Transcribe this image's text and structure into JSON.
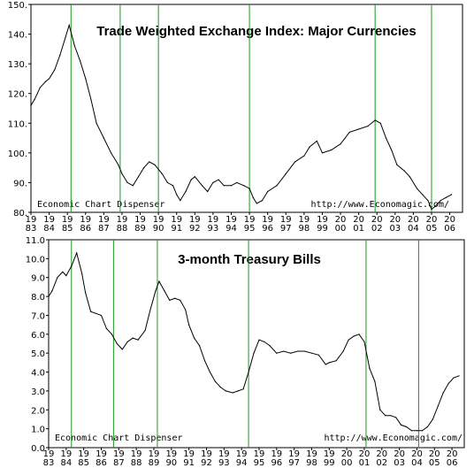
{
  "chart_data": [
    {
      "type": "line",
      "title": "Trade Weighted Exchange Index: Major Currencies",
      "footer_left": "Economic Chart Dispenser",
      "footer_right": "http://www.Economagic.com/",
      "ylim": [
        80,
        150
      ],
      "yticks": [
        "80.",
        "90.",
        "100.",
        "110.",
        "120.",
        "130.",
        "140.",
        "150."
      ],
      "xlim": [
        1983.0,
        2006.7
      ],
      "xtick_years": [
        1983,
        1984,
        1985,
        1986,
        1987,
        1988,
        1989,
        1990,
        1991,
        1992,
        1993,
        1994,
        1995,
        1996,
        1997,
        1998,
        1999,
        2000,
        2001,
        2002,
        2003,
        2004,
        2005,
        2006
      ],
      "xtick_labels": [
        [
          "19",
          "83"
        ],
        [
          "19",
          "84"
        ],
        [
          "19",
          "85"
        ],
        [
          "19",
          "86"
        ],
        [
          "19",
          "87"
        ],
        [
          "19",
          "88"
        ],
        [
          "19",
          "89"
        ],
        [
          "19",
          "90"
        ],
        [
          "19",
          "91"
        ],
        [
          "19",
          "92"
        ],
        [
          "19",
          "93"
        ],
        [
          "19",
          "94"
        ],
        [
          "19",
          "95"
        ],
        [
          "19",
          "96"
        ],
        [
          "19",
          "97"
        ],
        [
          "19",
          "98"
        ],
        [
          "19",
          "99"
        ],
        [
          "20",
          "00"
        ],
        [
          "20",
          "01"
        ],
        [
          "20",
          "02"
        ],
        [
          "20",
          "03"
        ],
        [
          "20",
          "04"
        ],
        [
          "20",
          "05"
        ],
        [
          "20",
          "06"
        ]
      ],
      "vlines": [
        1985.2,
        1987.9,
        1990.0,
        1995.0,
        2001.9,
        2005.0
      ],
      "series": [
        {
          "x": [
            1983.0,
            1983.2,
            1983.5,
            1983.8,
            1984.0,
            1984.3,
            1984.6,
            1984.9,
            1985.1,
            1985.4,
            1985.7,
            1986.0,
            1986.3,
            1986.6,
            1987.0,
            1987.4,
            1987.8,
            1988.0,
            1988.3,
            1988.6,
            1988.9,
            1989.2,
            1989.5,
            1989.8,
            1990.2,
            1990.5,
            1990.8,
            1991.0,
            1991.2,
            1991.5,
            1991.8,
            1992.0,
            1992.4,
            1992.7,
            1993.0,
            1993.3,
            1993.6,
            1994.0,
            1994.3,
            1994.7,
            1995.0,
            1995.2,
            1995.4,
            1995.7,
            1996.0,
            1996.5,
            1997.0,
            1997.5,
            1998.0,
            1998.3,
            1998.7,
            1999.0,
            1999.5,
            2000.0,
            2000.5,
            2001.0,
            2001.5,
            2001.9,
            2002.2,
            2002.5,
            2002.8,
            2003.1,
            2003.5,
            2003.8,
            2004.2,
            2004.5,
            2004.8,
            2005.0,
            2005.2,
            2005.5,
            2005.8,
            2006.1
          ],
          "y": [
            116,
            118,
            122,
            124,
            125,
            128,
            133,
            139,
            143,
            136,
            131,
            125,
            118,
            110,
            105,
            100,
            96,
            93,
            90,
            89,
            92,
            95,
            97,
            96,
            93,
            90,
            89,
            86,
            84,
            87,
            91,
            92,
            89,
            87,
            90,
            91,
            89,
            89,
            90,
            89,
            88,
            85,
            83,
            84,
            87,
            89,
            93,
            97,
            99,
            102,
            104,
            100,
            101,
            103,
            107,
            108,
            109,
            111,
            110,
            105,
            101,
            96,
            94,
            92,
            88,
            86,
            84,
            81,
            82,
            84,
            85,
            86
          ]
        }
      ]
    },
    {
      "type": "line",
      "title": "3-month Treasury Bills",
      "footer_left": "Economic Chart Dispenser",
      "footer_right": "http://www.Economagic.com/",
      "ylim": [
        0,
        11
      ],
      "yticks": [
        "0.0",
        "1.0",
        "2.0",
        "3.0",
        "4.0",
        "5.0",
        "6.0",
        "7.0",
        "8.0",
        "9.0",
        "10.0",
        "11.0"
      ],
      "xlim": [
        1983.0,
        2006.7
      ],
      "xtick_years": [
        1983,
        1984,
        1985,
        1986,
        1987,
        1988,
        1989,
        1990,
        1991,
        1992,
        1993,
        1994,
        1995,
        1996,
        1997,
        1998,
        1999,
        2000,
        2001,
        2002,
        2003,
        2004,
        2005,
        2006
      ],
      "xtick_labels": [
        [
          "19",
          "83"
        ],
        [
          "19",
          "84"
        ],
        [
          "19",
          "85"
        ],
        [
          "19",
          "86"
        ],
        [
          "19",
          "87"
        ],
        [
          "19",
          "88"
        ],
        [
          "19",
          "89"
        ],
        [
          "19",
          "90"
        ],
        [
          "19",
          "91"
        ],
        [
          "19",
          "92"
        ],
        [
          "19",
          "93"
        ],
        [
          "19",
          "94"
        ],
        [
          "19",
          "95"
        ],
        [
          "19",
          "96"
        ],
        [
          "19",
          "97"
        ],
        [
          "19",
          "98"
        ],
        [
          "19",
          "99"
        ],
        [
          "20",
          "00"
        ],
        [
          "20",
          "01"
        ],
        [
          "20",
          "02"
        ],
        [
          "20",
          "03"
        ],
        [
          "20",
          "04"
        ],
        [
          "20",
          "05"
        ],
        [
          "20",
          "06"
        ]
      ],
      "vlines": [
        1984.3,
        1986.7,
        1989.2,
        1994.4,
        2001.1,
        2004.1
      ],
      "series": [
        {
          "x": [
            1983.0,
            1983.2,
            1983.5,
            1983.8,
            1984.0,
            1984.3,
            1984.6,
            1984.9,
            1985.1,
            1985.4,
            1985.7,
            1986.0,
            1986.3,
            1986.6,
            1986.9,
            1987.2,
            1987.5,
            1987.8,
            1988.1,
            1988.5,
            1988.8,
            1989.1,
            1989.3,
            1989.6,
            1989.9,
            1990.2,
            1990.5,
            1990.8,
            1991.0,
            1991.3,
            1991.6,
            1991.9,
            1992.2,
            1992.5,
            1992.8,
            1993.1,
            1993.5,
            1993.8,
            1994.1,
            1994.4,
            1994.7,
            1995.0,
            1995.3,
            1995.6,
            1996.0,
            1996.4,
            1996.8,
            1997.2,
            1997.6,
            1998.0,
            1998.4,
            1998.8,
            1999.0,
            1999.4,
            1999.8,
            2000.1,
            2000.4,
            2000.7,
            2001.0,
            2001.3,
            2001.6,
            2001.9,
            2002.2,
            2002.5,
            2002.8,
            2003.1,
            2003.4,
            2003.7,
            2004.0,
            2004.3,
            2004.6,
            2004.9,
            2005.2,
            2005.5,
            2005.8,
            2006.1,
            2006.4
          ],
          "y": [
            8.0,
            8.3,
            9.0,
            9.3,
            9.1,
            9.6,
            10.3,
            9.2,
            8.2,
            7.2,
            7.1,
            7.0,
            6.3,
            6.0,
            5.5,
            5.2,
            5.6,
            5.8,
            5.7,
            6.2,
            7.3,
            8.3,
            8.8,
            8.3,
            7.8,
            7.9,
            7.8,
            7.3,
            6.5,
            5.8,
            5.4,
            4.6,
            4.0,
            3.5,
            3.2,
            3.0,
            2.9,
            3.0,
            3.1,
            4.0,
            5.0,
            5.7,
            5.6,
            5.4,
            5.0,
            5.1,
            5.0,
            5.1,
            5.1,
            5.0,
            4.9,
            4.4,
            4.5,
            4.6,
            5.1,
            5.7,
            5.9,
            6.0,
            5.6,
            4.2,
            3.5,
            2.0,
            1.7,
            1.7,
            1.6,
            1.2,
            1.1,
            0.9,
            0.9,
            0.9,
            1.1,
            1.5,
            2.2,
            2.9,
            3.4,
            3.7,
            3.8
          ]
        }
      ]
    }
  ]
}
